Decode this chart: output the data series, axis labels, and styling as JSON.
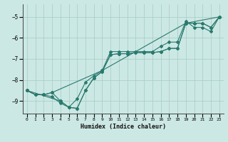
{
  "xlabel": "Humidex (Indice chaleur)",
  "bg_color": "#cce8e4",
  "grid_color": "#aacfca",
  "line_color": "#2a7a6e",
  "xlim": [
    -0.5,
    23.5
  ],
  "ylim": [
    -9.6,
    -4.4
  ],
  "xticks": [
    0,
    1,
    2,
    3,
    4,
    5,
    6,
    7,
    8,
    9,
    10,
    11,
    12,
    13,
    14,
    15,
    16,
    17,
    18,
    19,
    20,
    21,
    22,
    23
  ],
  "yticks": [
    -9,
    -8,
    -7,
    -6,
    -5
  ],
  "line1_x": [
    0,
    1,
    2,
    3,
    4,
    5,
    6,
    7,
    8,
    9,
    10,
    11,
    12,
    13,
    14,
    15,
    16,
    17,
    18,
    19,
    20,
    21,
    22,
    23
  ],
  "line1_y": [
    -8.5,
    -8.7,
    -8.7,
    -8.6,
    -9.0,
    -9.3,
    -9.35,
    -8.5,
    -7.9,
    -7.6,
    -6.8,
    -6.75,
    -6.75,
    -6.7,
    -6.7,
    -6.7,
    -6.65,
    -6.5,
    -6.5,
    -5.3,
    -5.3,
    -5.3,
    -5.5,
    -5.0
  ],
  "line2_x": [
    0,
    1,
    2,
    3,
    4,
    5,
    6,
    7,
    8,
    9,
    10,
    11,
    12,
    13,
    14,
    15,
    16,
    17,
    18,
    19,
    20,
    21,
    22,
    23
  ],
  "line2_y": [
    -8.5,
    -8.7,
    -8.7,
    -8.8,
    -9.1,
    -9.3,
    -8.9,
    -8.1,
    -7.8,
    -7.55,
    -6.65,
    -6.65,
    -6.65,
    -6.65,
    -6.65,
    -6.65,
    -6.4,
    -6.2,
    -6.2,
    -5.2,
    -5.5,
    -5.5,
    -5.7,
    -5.0
  ],
  "line3_x": [
    0,
    1,
    2,
    3,
    9,
    19,
    20,
    21,
    22,
    23
  ],
  "line3_y": [
    -8.5,
    -8.7,
    -8.7,
    -8.6,
    -7.55,
    -5.3,
    -5.3,
    -5.3,
    -5.5,
    -5.0
  ],
  "line4_x": [
    0,
    4,
    5,
    6,
    7,
    8,
    9,
    10,
    11,
    12,
    13,
    14,
    15,
    16,
    17,
    18,
    19,
    23
  ],
  "line4_y": [
    -8.5,
    -9.0,
    -9.3,
    -9.35,
    -8.5,
    -7.9,
    -7.6,
    -6.8,
    -6.75,
    -6.75,
    -6.7,
    -6.7,
    -6.7,
    -6.65,
    -6.5,
    -6.5,
    -5.3,
    -5.0
  ]
}
